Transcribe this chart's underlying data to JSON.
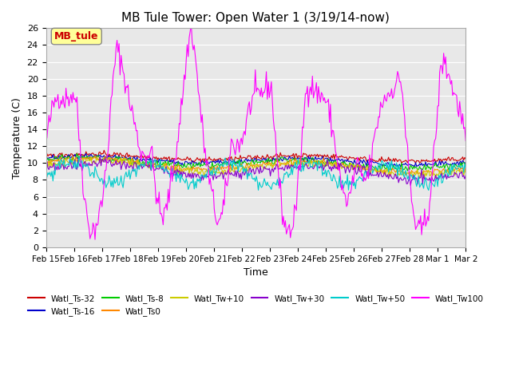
{
  "title": "MB Tule Tower: Open Water 1 (3/19/14-now)",
  "xlabel": "Time",
  "ylabel": "Temperature (C)",
  "ylim": [
    0,
    26
  ],
  "yticks": [
    0,
    2,
    4,
    6,
    8,
    10,
    12,
    14,
    16,
    18,
    20,
    22,
    24,
    26
  ],
  "xlim": [
    0,
    420
  ],
  "xtick_labels": [
    "Feb 15",
    "Feb 16",
    "Feb 17",
    "Feb 18",
    "Feb 19",
    "Feb 20",
    "Feb 21",
    "Feb 22",
    "Feb 23",
    "Feb 24",
    "Feb 25",
    "Feb 26",
    "Feb 27",
    "Feb 28",
    "Mar 1",
    "Mar 2"
  ],
  "legend_label": "MB_tule",
  "series_colors": {
    "Watl_Ts-32": "#cc0000",
    "Watl_Ts-16": "#0000cc",
    "Watl_Ts-8": "#00cc00",
    "Watl_Ts0": "#ff8800",
    "Watl_Tw+10": "#cccc00",
    "Watl_Tw+30": "#8800cc",
    "Watl_Tw+50": "#00cccc",
    "Watl_Tw100": "#ff00ff"
  },
  "background_color": "#ffffff",
  "plot_bg_color": "#e8e8e8",
  "grid_color": "#ffffff"
}
